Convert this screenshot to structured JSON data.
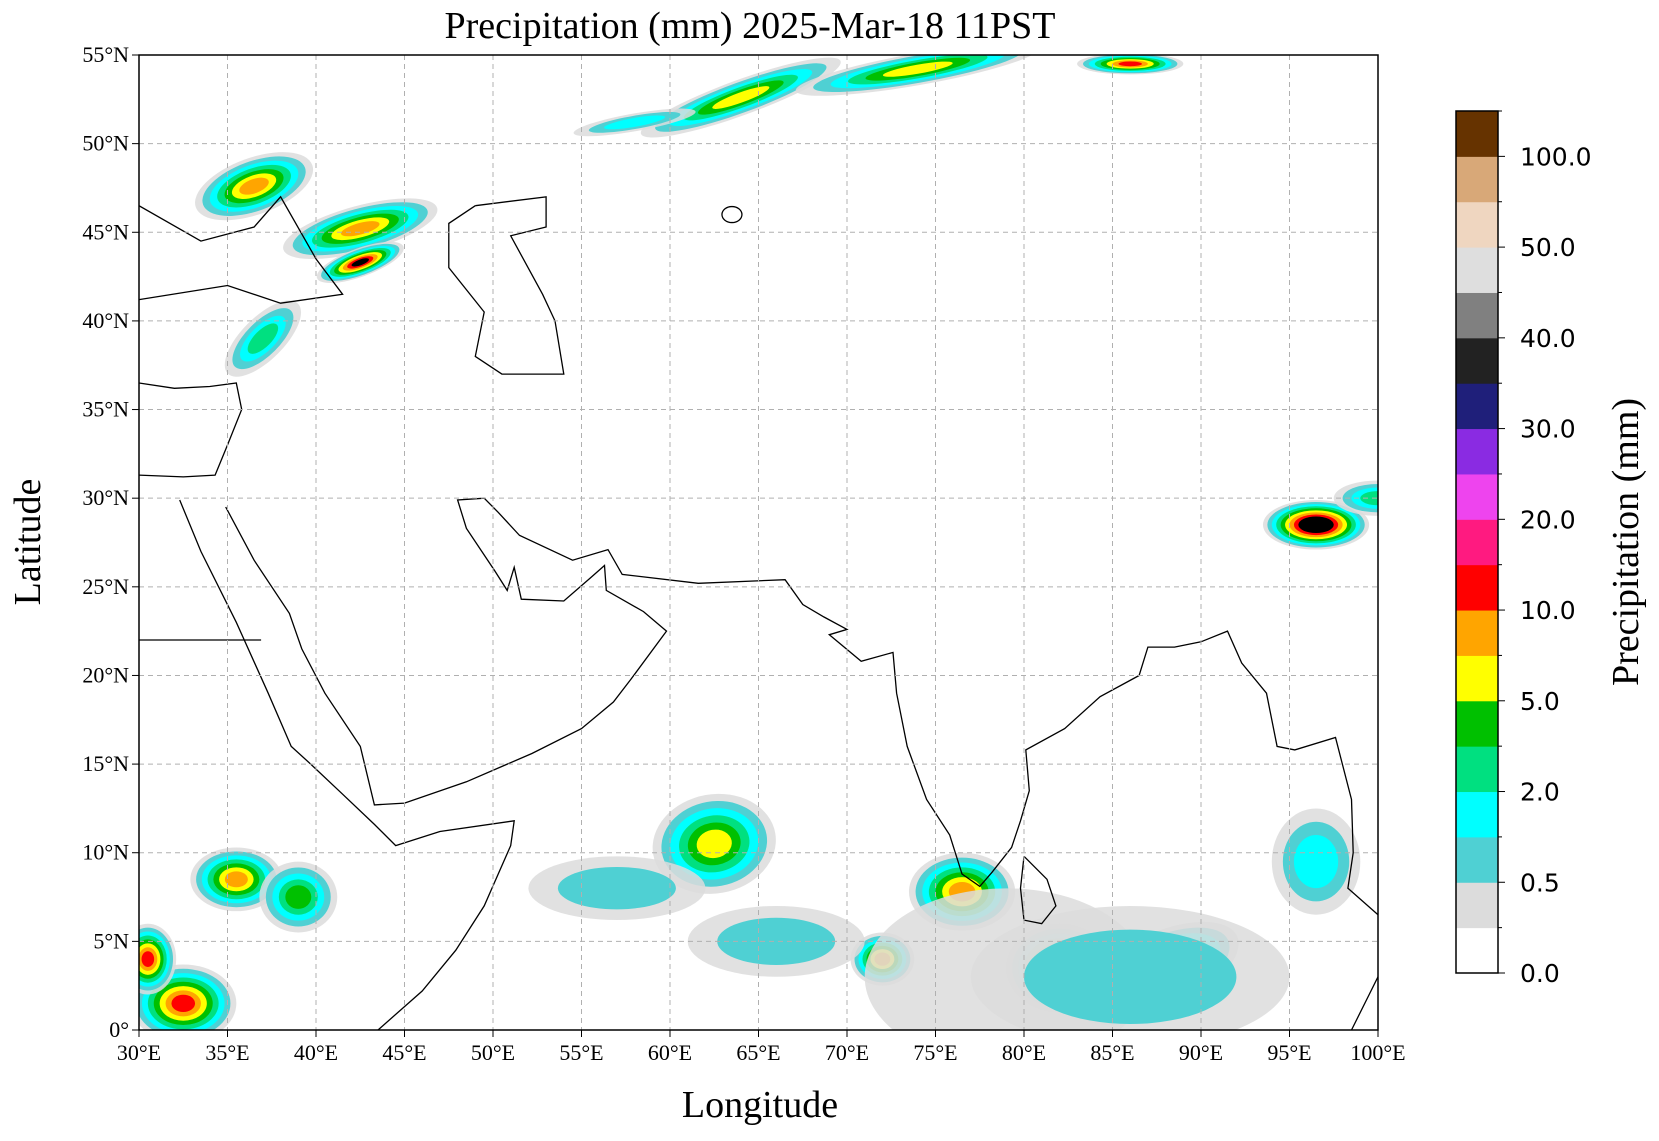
{
  "title": "Precipitation (mm)  2025-Mar-18 11PST",
  "x_label": "Longitude",
  "y_label": "Latitude",
  "xlim": [
    30,
    100
  ],
  "ylim": [
    0,
    55
  ],
  "xticks": [
    {
      "value": 30,
      "label": "30°E"
    },
    {
      "value": 35,
      "label": "35°E"
    },
    {
      "value": 40,
      "label": "40°E"
    },
    {
      "value": 45,
      "label": "45°E"
    },
    {
      "value": 50,
      "label": "50°E"
    },
    {
      "value": 55,
      "label": "55°E"
    },
    {
      "value": 60,
      "label": "60°E"
    },
    {
      "value": 65,
      "label": "65°E"
    },
    {
      "value": 70,
      "label": "70°E"
    },
    {
      "value": 75,
      "label": "75°E"
    },
    {
      "value": 80,
      "label": "80°E"
    },
    {
      "value": 85,
      "label": "85°E"
    },
    {
      "value": 90,
      "label": "90°E"
    },
    {
      "value": 95,
      "label": "95°E"
    },
    {
      "value": 100,
      "label": "100°E"
    }
  ],
  "yticks": [
    {
      "value": 0,
      "label": "0°"
    },
    {
      "value": 5,
      "label": "5°N"
    },
    {
      "value": 10,
      "label": "10°N"
    },
    {
      "value": 15,
      "label": "15°N"
    },
    {
      "value": 20,
      "label": "20°N"
    },
    {
      "value": 25,
      "label": "25°N"
    },
    {
      "value": 30,
      "label": "30°N"
    },
    {
      "value": 35,
      "label": "35°N"
    },
    {
      "value": 40,
      "label": "40°N"
    },
    {
      "value": 45,
      "label": "45°N"
    },
    {
      "value": 50,
      "label": "50°N"
    },
    {
      "value": 55,
      "label": "55°N"
    }
  ],
  "grid": true,
  "colorbar": {
    "label": "Precipitation (mm)",
    "colors": [
      "#ffffff",
      "#dcdcdc",
      "#4fd0d3",
      "#00ffff",
      "#00e080",
      "#00c000",
      "#ffff00",
      "#ffa500",
      "#ff0000",
      "#ff1a80",
      "#ee44ee",
      "#8a2be2",
      "#1f1f7a",
      "#222222",
      "#808080",
      "#dedede",
      "#efd6c0",
      "#d8a878",
      "#663300"
    ],
    "tick_labels": [
      "0.0",
      "0.5",
      "2.0",
      "5.0",
      "10.0",
      "20.0",
      "30.0",
      "40.0",
      "50.0",
      "100.0"
    ]
  }
}
